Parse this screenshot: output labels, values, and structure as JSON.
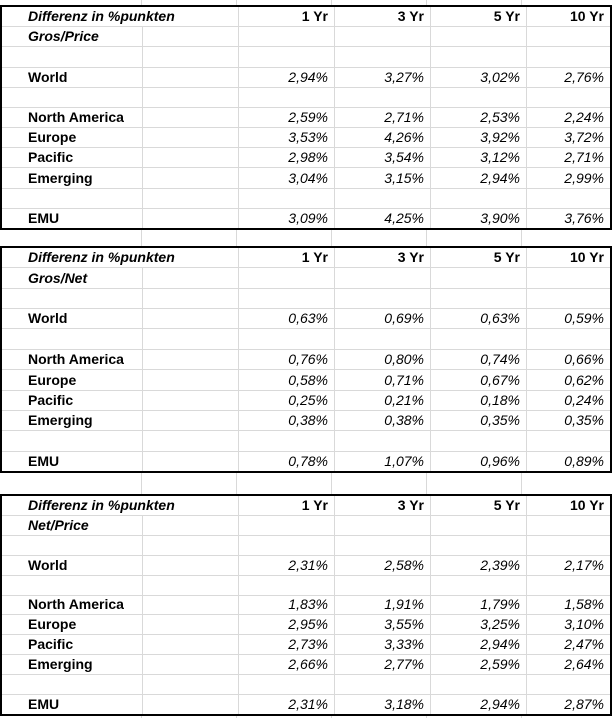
{
  "columns": [
    "1 Yr",
    "3 Yr",
    "5 Yr",
    "10 Yr"
  ],
  "tables": [
    {
      "title": "Differenz in %punkten",
      "subtitle": "Gros/Price",
      "rows": [
        {
          "label": "World",
          "values": [
            "2,94%",
            "3,27%",
            "3,02%",
            "2,76%"
          ]
        },
        {
          "label": "North America",
          "values": [
            "2,59%",
            "2,71%",
            "2,53%",
            "2,24%"
          ]
        },
        {
          "label": "Europe",
          "values": [
            "3,53%",
            "4,26%",
            "3,92%",
            "3,72%"
          ]
        },
        {
          "label": "Pacific",
          "values": [
            "2,98%",
            "3,54%",
            "3,12%",
            "2,71%"
          ]
        },
        {
          "label": "Emerging",
          "values": [
            "3,04%",
            "3,15%",
            "2,94%",
            "2,99%"
          ]
        },
        {
          "label": "EMU",
          "values": [
            "3,09%",
            "4,25%",
            "3,90%",
            "3,76%"
          ]
        }
      ]
    },
    {
      "title": "Differenz in %punkten",
      "subtitle": "Gros/Net",
      "rows": [
        {
          "label": "World",
          "values": [
            "0,63%",
            "0,69%",
            "0,63%",
            "0,59%"
          ]
        },
        {
          "label": "North America",
          "values": [
            "0,76%",
            "0,80%",
            "0,74%",
            "0,66%"
          ]
        },
        {
          "label": "Europe",
          "values": [
            "0,58%",
            "0,71%",
            "0,67%",
            "0,62%"
          ]
        },
        {
          "label": "Pacific",
          "values": [
            "0,25%",
            "0,21%",
            "0,18%",
            "0,24%"
          ]
        },
        {
          "label": "Emerging",
          "values": [
            "0,38%",
            "0,38%",
            "0,35%",
            "0,35%"
          ]
        },
        {
          "label": "EMU",
          "values": [
            "0,78%",
            "1,07%",
            "0,96%",
            "0,89%"
          ]
        }
      ]
    },
    {
      "title": "Differenz in %punkten",
      "subtitle": "Net/Price",
      "rows": [
        {
          "label": "World",
          "values": [
            "2,31%",
            "2,58%",
            "2,39%",
            "2,17%"
          ]
        },
        {
          "label": "North America",
          "values": [
            "1,83%",
            "1,91%",
            "1,79%",
            "1,58%"
          ]
        },
        {
          "label": "Europe",
          "values": [
            "2,95%",
            "3,55%",
            "3,25%",
            "3,10%"
          ]
        },
        {
          "label": "Pacific",
          "values": [
            "2,73%",
            "3,33%",
            "2,94%",
            "2,47%"
          ]
        },
        {
          "label": "Emerging",
          "values": [
            "2,66%",
            "2,77%",
            "2,59%",
            "2,64%"
          ]
        },
        {
          "label": "EMU",
          "values": [
            "2,31%",
            "3,18%",
            "2,94%",
            "2,87%"
          ]
        }
      ]
    }
  ],
  "colors": {
    "gridline": "#d9d9d9",
    "table_border": "#000000",
    "text": "#000000",
    "background": "#ffffff"
  }
}
